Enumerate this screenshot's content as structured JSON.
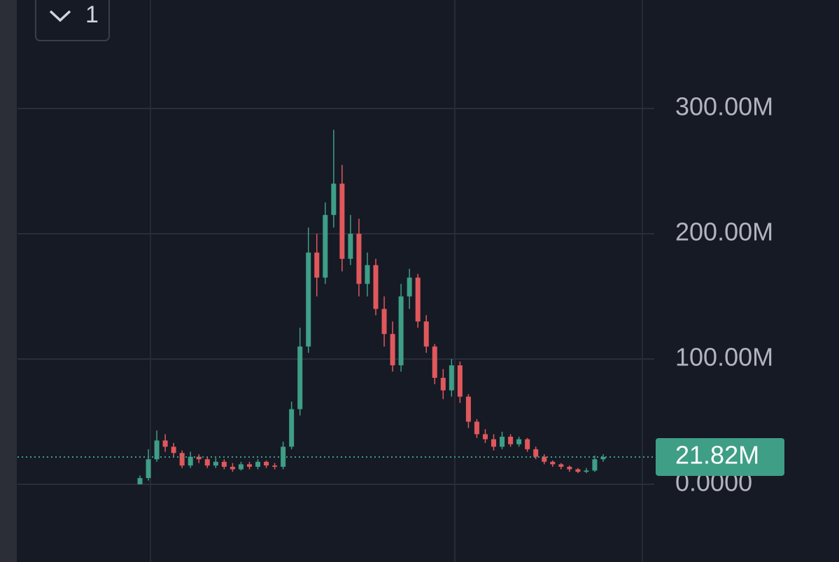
{
  "toolbar": {
    "label": "1"
  },
  "chart_data": {
    "type": "candlestick",
    "ylim": [
      -62,
      386.6
    ],
    "yticks": [
      {
        "value": 0,
        "label": "0.0000"
      },
      {
        "value": 100,
        "label": "100.00M"
      },
      {
        "value": 200,
        "label": "200.00M"
      },
      {
        "value": 300,
        "label": "300.00M"
      }
    ],
    "grid": true,
    "up_color": "#3e9e86",
    "down_color": "#e0585c",
    "last_price": {
      "value": 21.82,
      "label": "21.82M"
    },
    "open": [
      0,
      5,
      20,
      35,
      30,
      25,
      15,
      22,
      20,
      15,
      18,
      14,
      12,
      16,
      14,
      18,
      15,
      14,
      30,
      60,
      110,
      185,
      165,
      215,
      240,
      180,
      200,
      160,
      175,
      140,
      120,
      95,
      150,
      165,
      130,
      110,
      85,
      75,
      95,
      70,
      50,
      40,
      36,
      30,
      38,
      32,
      36,
      28,
      22,
      18,
      16,
      14,
      12,
      10,
      11,
      20
    ],
    "high": [
      7,
      28,
      43,
      40,
      33,
      27,
      26,
      24,
      22,
      21,
      20,
      17,
      18,
      18,
      20,
      19,
      17,
      34,
      66,
      125,
      205,
      200,
      225,
      283,
      255,
      215,
      212,
      185,
      180,
      150,
      130,
      160,
      172,
      168,
      135,
      112,
      92,
      100,
      98,
      72,
      52,
      44,
      40,
      42,
      40,
      38,
      37,
      30,
      24,
      19,
      17,
      15,
      13,
      13,
      23,
      24
    ],
    "low": [
      0,
      3,
      18,
      26,
      22,
      13,
      13,
      17,
      13,
      13,
      12,
      10,
      11,
      12,
      12,
      13,
      12,
      12,
      28,
      55,
      105,
      150,
      160,
      205,
      170,
      175,
      150,
      150,
      135,
      110,
      90,
      90,
      140,
      125,
      105,
      80,
      68,
      70,
      65,
      45,
      37,
      33,
      27,
      28,
      30,
      30,
      26,
      20,
      16,
      14,
      12,
      10,
      9,
      9,
      10,
      18
    ],
    "close": [
      5,
      20,
      35,
      30,
      25,
      15,
      22,
      20,
      15,
      18,
      14,
      12,
      16,
      14,
      18,
      15,
      14,
      30,
      60,
      110,
      185,
      165,
      215,
      240,
      180,
      200,
      160,
      175,
      140,
      120,
      95,
      150,
      165,
      130,
      110,
      85,
      75,
      95,
      70,
      50,
      40,
      36,
      30,
      38,
      32,
      36,
      28,
      22,
      18,
      16,
      14,
      12,
      10,
      11,
      20,
      21.82
    ]
  }
}
